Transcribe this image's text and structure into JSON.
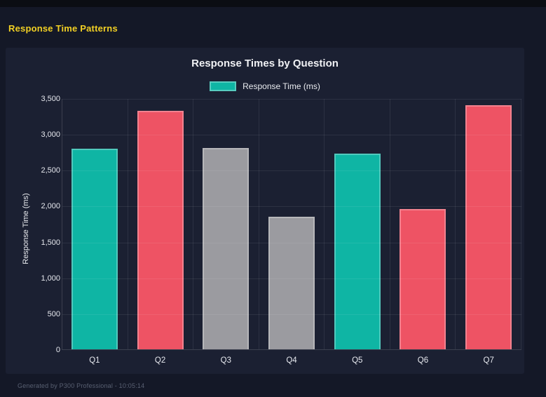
{
  "page": {
    "header_title": "Response Time Patterns",
    "footer_note": "Generated by P300 Professional - 10:05:14"
  },
  "chart_data": {
    "type": "bar",
    "title": "Response Times by Question",
    "legend": {
      "label": "Response Time (ms)",
      "swatch_color": "#0fb5a4",
      "position": "top"
    },
    "categories": [
      "Q1",
      "Q2",
      "Q3",
      "Q4",
      "Q5",
      "Q6",
      "Q7"
    ],
    "series": [
      {
        "name": "Response Time (ms)",
        "values": [
          2800,
          3320,
          2810,
          1850,
          2730,
          1960,
          3400
        ]
      }
    ],
    "bar_colors": [
      "#0fb5a4",
      "#ee5364",
      "#9b9ba0",
      "#9b9ba0",
      "#0fb5a4",
      "#ee5364",
      "#ee5364"
    ],
    "xlabel": "",
    "ylabel": "Response Time (ms)",
    "ylim": [
      0,
      3500
    ],
    "ytick_step": 500,
    "grid": true
  },
  "colors": {
    "page_background": "#141827",
    "card_background": "#1b2032",
    "header_text": "#f2d024",
    "title_text": "#f0f1f4",
    "teal": "#0fb5a4",
    "red": "#ee5364",
    "gray": "#9b9ba0",
    "gridline": "rgba(255,255,255,0.08)"
  }
}
